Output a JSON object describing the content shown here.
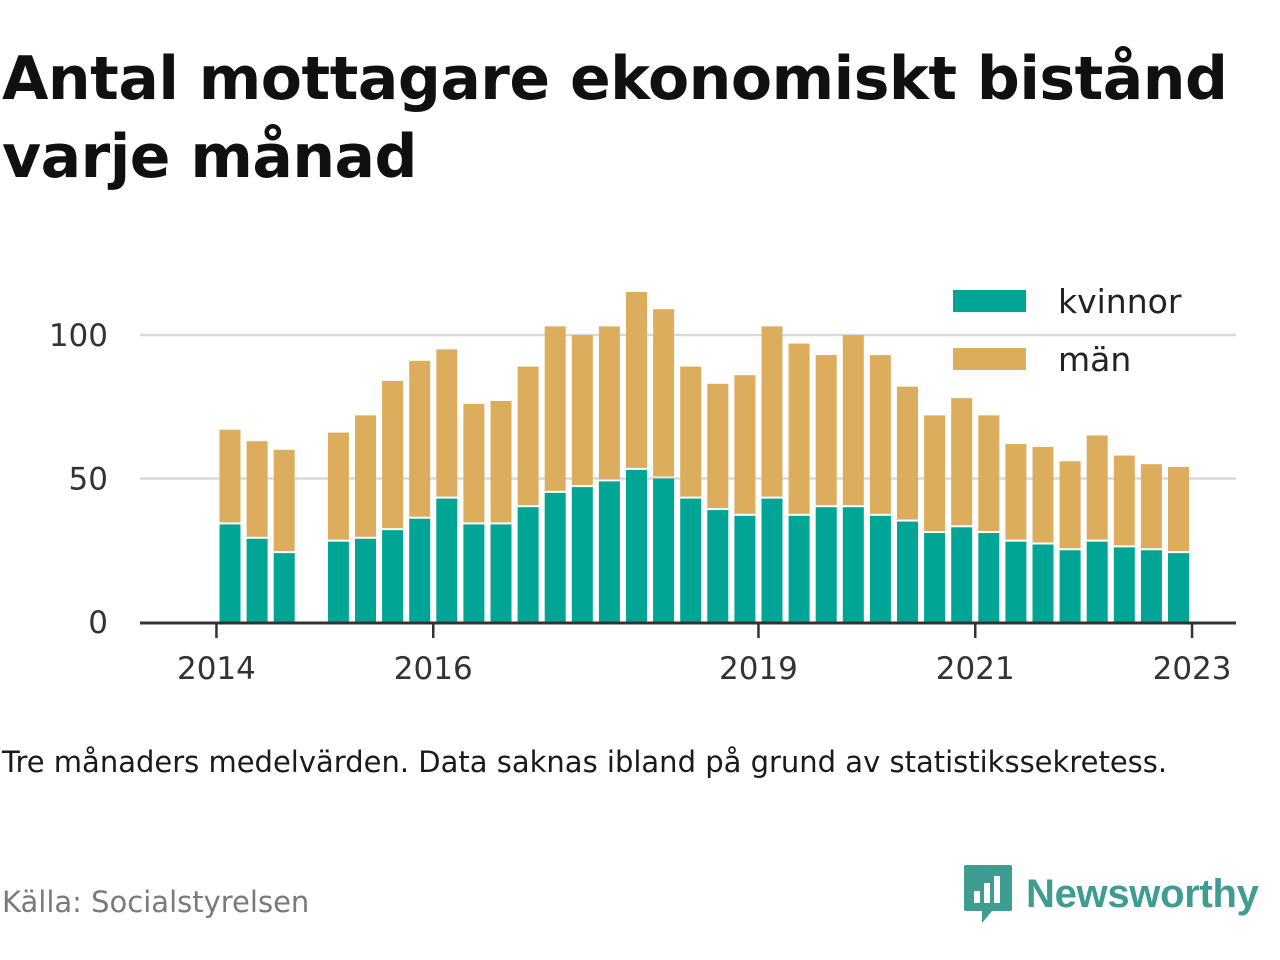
{
  "title": "Antal mottagare ekonomiskt bistånd varje månad",
  "note": "Tre månaders medelvärden. Data saknas ibland på grund av statistikssekretess.",
  "source": "Källa: Socialstyrelsen",
  "brand": "Newsworthy",
  "brand_icon": "bar-chart-speech-bubble-icon",
  "colors": {
    "kvinnor": "#00a596",
    "man": "#dcad5c",
    "grid": "#d9d9d9",
    "axis": "#333333",
    "brand": "#3f9c92"
  },
  "chart_data": {
    "type": "bar",
    "stacked": true,
    "x_unit": "quarter",
    "categories": [
      "2014 Q2",
      "2014 Q3",
      "2014 Q4",
      "2015 Q1",
      "2015 Q2",
      "2015 Q3",
      "2015 Q4",
      "2016 Q1",
      "2016 Q2",
      "2016 Q3",
      "2016 Q4",
      "2017 Q1",
      "2017 Q2",
      "2017 Q3",
      "2017 Q4",
      "2018 Q1",
      "2018 Q2",
      "2018 Q3",
      "2018 Q4",
      "2019 Q1",
      "2019 Q2",
      "2019 Q3",
      "2019 Q4",
      "2020 Q1",
      "2020 Q2",
      "2020 Q3",
      "2020 Q4",
      "2021 Q1",
      "2021 Q2",
      "2021 Q3",
      "2021 Q4",
      "2022 Q1",
      "2022 Q2",
      "2022 Q3",
      "2022 Q4",
      "2023 Q1"
    ],
    "series": [
      {
        "name": "kvinnor",
        "values": [
          34,
          29,
          24,
          null,
          28,
          29,
          32,
          36,
          43,
          34,
          34,
          40,
          45,
          47,
          49,
          53,
          50,
          43,
          39,
          37,
          43,
          37,
          40,
          40,
          37,
          35,
          31,
          33,
          31,
          28,
          27,
          25,
          28,
          26,
          25,
          24
        ]
      },
      {
        "name": "män",
        "values": [
          33,
          34,
          36,
          null,
          38,
          43,
          52,
          55,
          52,
          42,
          43,
          49,
          58,
          53,
          54,
          62,
          59,
          46,
          44,
          49,
          60,
          60,
          53,
          60,
          56,
          47,
          41,
          45,
          41,
          34,
          34,
          31,
          37,
          32,
          30,
          30
        ]
      }
    ],
    "xticks": [
      {
        "label": "2014",
        "index": -0.5
      },
      {
        "label": "2016",
        "index": 7.5
      },
      {
        "label": "2019",
        "index": 19.5
      },
      {
        "label": "2021",
        "index": 27.5
      },
      {
        "label": "2023",
        "index": 35.5
      }
    ],
    "yticks": [
      0,
      50,
      100
    ],
    "ylim": [
      0,
      120
    ],
    "grid": true,
    "legend": {
      "position": "top-right",
      "entries": [
        "kvinnor",
        "män"
      ]
    }
  }
}
